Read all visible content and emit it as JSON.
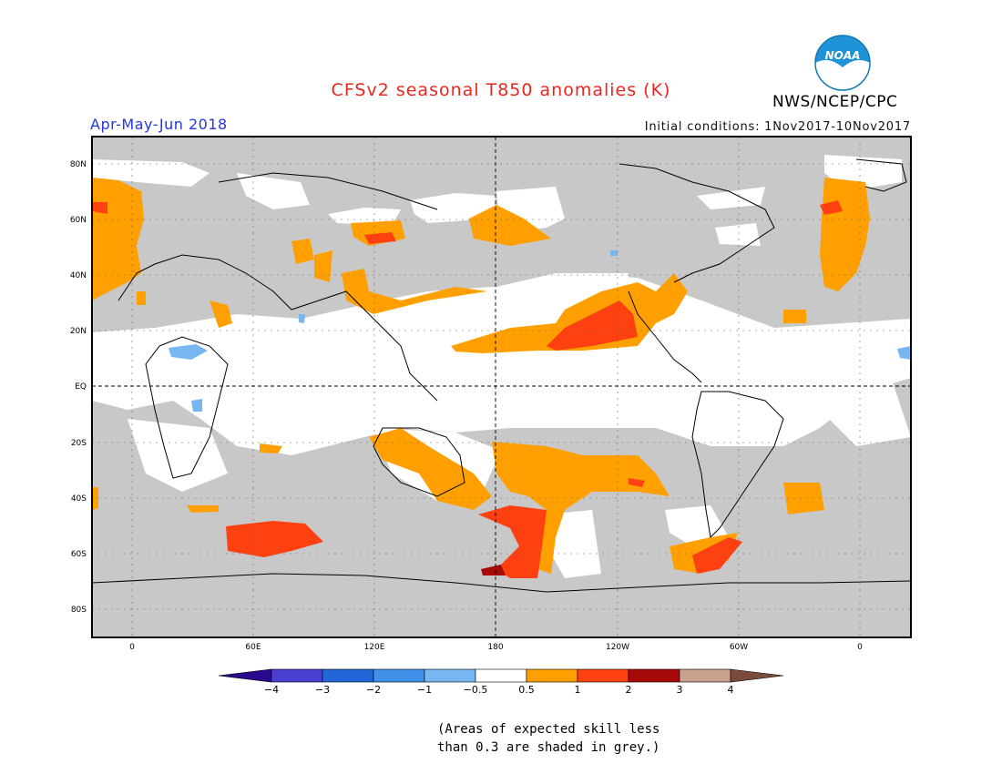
{
  "title": "CFSv2 seasonal T850 anomalies (K)",
  "organization": "NWS/NCEP/CPC",
  "logo_text": "NOAA",
  "season": "Apr-May-Jun 2018",
  "initial_conditions": "Initial conditions: 1Nov2017-10Nov2017",
  "lat_labels": [
    "80N",
    "60N",
    "40N",
    "20N",
    "EQ",
    "20S",
    "40S",
    "60S",
    "80S"
  ],
  "lon_labels": [
    "0",
    "60E",
    "120E",
    "180",
    "120W",
    "60W",
    "0"
  ],
  "colorbar": {
    "tick_labels": [
      "-4",
      "-3",
      "-2",
      "-1",
      "-0.5",
      "0.5",
      "1",
      "2",
      "3",
      "4"
    ],
    "colors": [
      "#2a0a8c",
      "#4a3fd0",
      "#2366d8",
      "#3f91ea",
      "#78b6f2",
      "#ffffff",
      "#ffa000",
      "#ff4010",
      "#a80a0a",
      "#c9a08e",
      "#7a4a3a"
    ]
  },
  "colors": {
    "title": "#e8261e",
    "season": "#2436e0",
    "grey_low_skill": "#c8c8c8"
  },
  "note": [
    "(Areas of expected skill less",
    " than 0.3 are shaded in grey.)"
  ]
}
